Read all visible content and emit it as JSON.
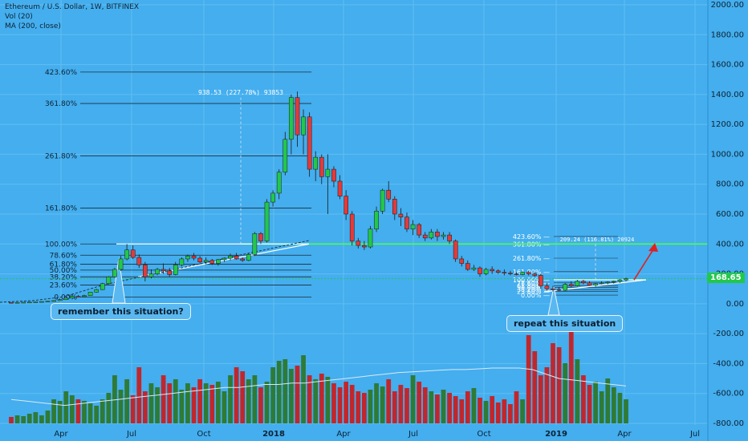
{
  "header": {
    "symbol": "Ethereum / U.S. Dollar, 1W, BITFINEX",
    "indicator1": "Vol (20)",
    "indicator2": "MA (200, close)"
  },
  "annotations": {
    "left_note": "remember this situation?",
    "right_note": "repeat this situation",
    "last_price": "168.65",
    "top_measure": "938.53 (227.78%) 93853",
    "right_measure": "209.24 (116.81%) 20924"
  },
  "colors": {
    "background": "#44aeee",
    "bull": "#22c84a",
    "bear": "#e33a3a",
    "vol_bull": "#2f7a35",
    "vol_bear": "#c0272d",
    "support_line": "#4dff4d",
    "arrow": "#e02020"
  },
  "chart_data": {
    "type": "candlestick",
    "y_axis": {
      "ticks": [
        "2000.00",
        "1800.00",
        "1600.00",
        "1400.00",
        "1200.00",
        "1000.00",
        "800.00",
        "600.00",
        "400.00",
        "200.00",
        "0.00",
        "-200.00",
        "-400.00",
        "-600.00",
        "-800.00"
      ],
      "ylim": [
        -800,
        2000
      ]
    },
    "x_axis": {
      "ticks": [
        "Apr",
        "Jul",
        "Oct",
        "2018",
        "Apr",
        "Jul",
        "Oct",
        "2019",
        "Apr",
        "Jul"
      ]
    },
    "fib_left": [
      {
        "label": "423.60%",
        "value": 1550
      },
      {
        "label": "361.80%",
        "value": 1340
      },
      {
        "label": "261.80%",
        "value": 990
      },
      {
        "label": "161.80%",
        "value": 640
      },
      {
        "label": "100.00%",
        "value": 400
      },
      {
        "label": "78.60%",
        "value": 325
      },
      {
        "label": "61.80%",
        "value": 265
      },
      {
        "label": "50.00%",
        "value": 225
      },
      {
        "label": "38.20%",
        "value": 180
      },
      {
        "label": "23.60%",
        "value": 125
      },
      {
        "label": "0.00%",
        "value": 45
      }
    ],
    "fib_right": [
      {
        "label": "423.60%",
        "value": 450
      },
      {
        "label": "361.80%",
        "value": 400
      },
      {
        "label": "261.80%",
        "value": 305
      },
      {
        "label": "161.80%",
        "value": 215
      },
      {
        "label": "100.00%",
        "value": 160
      },
      {
        "label": "78.60%",
        "value": 140
      },
      {
        "label": "61.80%",
        "value": 120
      },
      {
        "label": "50.00%",
        "value": 110
      },
      {
        "label": "38.20%",
        "value": 95
      },
      {
        "label": "23.60%",
        "value": 82
      },
      {
        "label": "0.00%",
        "value": 58
      }
    ],
    "support_level": 400,
    "last_price": 168.65,
    "candles": [
      [
        9,
        10,
        7,
        8
      ],
      [
        8,
        10,
        7,
        9
      ],
      [
        9,
        11,
        8,
        10
      ],
      [
        10,
        12,
        9,
        11
      ],
      [
        11,
        14,
        10,
        13
      ],
      [
        13,
        16,
        12,
        15
      ],
      [
        15,
        19,
        14,
        18
      ],
      [
        18,
        23,
        17,
        21
      ],
      [
        21,
        30,
        20,
        28
      ],
      [
        28,
        40,
        27,
        38
      ],
      [
        38,
        52,
        36,
        50
      ],
      [
        50,
        58,
        44,
        48
      ],
      [
        48,
        60,
        45,
        55
      ],
      [
        55,
        80,
        54,
        78
      ],
      [
        78,
        100,
        75,
        95
      ],
      [
        95,
        140,
        92,
        135
      ],
      [
        135,
        185,
        130,
        180
      ],
      [
        180,
        240,
        175,
        230
      ],
      [
        230,
        320,
        220,
        300
      ],
      [
        300,
        400,
        290,
        360
      ],
      [
        360,
        390,
        300,
        310
      ],
      [
        310,
        330,
        240,
        260
      ],
      [
        260,
        280,
        150,
        180
      ],
      [
        180,
        230,
        170,
        200
      ],
      [
        200,
        240,
        190,
        230
      ],
      [
        230,
        270,
        200,
        220
      ],
      [
        220,
        240,
        180,
        195
      ],
      [
        195,
        280,
        190,
        260
      ],
      [
        260,
        310,
        250,
        300
      ],
      [
        300,
        330,
        280,
        320
      ],
      [
        320,
        340,
        290,
        305
      ],
      [
        305,
        320,
        270,
        280
      ],
      [
        280,
        310,
        265,
        290
      ],
      [
        290,
        300,
        260,
        270
      ],
      [
        270,
        300,
        255,
        295
      ],
      [
        295,
        310,
        280,
        305
      ],
      [
        305,
        335,
        290,
        320
      ],
      [
        320,
        340,
        295,
        300
      ],
      [
        300,
        310,
        280,
        290
      ],
      [
        290,
        340,
        285,
        330
      ],
      [
        330,
        480,
        320,
        470
      ],
      [
        470,
        480,
        400,
        420
      ],
      [
        420,
        700,
        410,
        680
      ],
      [
        680,
        760,
        650,
        740
      ],
      [
        740,
        900,
        700,
        880
      ],
      [
        880,
        1150,
        860,
        1100
      ],
      [
        1100,
        1400,
        1000,
        1380
      ],
      [
        1380,
        1420,
        1050,
        1130
      ],
      [
        1130,
        1300,
        1000,
        1250
      ],
      [
        1250,
        1280,
        850,
        900
      ],
      [
        900,
        1020,
        820,
        980
      ],
      [
        980,
        1000,
        800,
        850
      ],
      [
        850,
        1000,
        600,
        900
      ],
      [
        900,
        920,
        780,
        820
      ],
      [
        820,
        860,
        700,
        720
      ],
      [
        720,
        760,
        560,
        600
      ],
      [
        600,
        620,
        390,
        420
      ],
      [
        420,
        440,
        370,
        390
      ],
      [
        390,
        420,
        360,
        380
      ],
      [
        380,
        520,
        370,
        500
      ],
      [
        500,
        650,
        480,
        620
      ],
      [
        620,
        770,
        600,
        760
      ],
      [
        760,
        820,
        680,
        700
      ],
      [
        700,
        720,
        560,
        600
      ],
      [
        600,
        640,
        520,
        580
      ],
      [
        580,
        610,
        480,
        500
      ],
      [
        500,
        560,
        460,
        530
      ],
      [
        530,
        540,
        440,
        460
      ],
      [
        460,
        480,
        420,
        440
      ],
      [
        440,
        500,
        430,
        480
      ],
      [
        480,
        500,
        420,
        450
      ],
      [
        450,
        480,
        430,
        460
      ],
      [
        460,
        480,
        400,
        420
      ],
      [
        420,
        430,
        280,
        300
      ],
      [
        300,
        320,
        250,
        270
      ],
      [
        270,
        290,
        220,
        230
      ],
      [
        230,
        260,
        220,
        240
      ],
      [
        240,
        250,
        180,
        200
      ],
      [
        200,
        240,
        190,
        230
      ],
      [
        230,
        250,
        200,
        220
      ],
      [
        220,
        230,
        200,
        210
      ],
      [
        210,
        230,
        190,
        205
      ],
      [
        205,
        220,
        190,
        200
      ],
      [
        200,
        210,
        190,
        195
      ],
      [
        195,
        215,
        190,
        210
      ],
      [
        210,
        220,
        190,
        200
      ],
      [
        200,
        210,
        180,
        190
      ],
      [
        190,
        200,
        100,
        120
      ],
      [
        120,
        140,
        90,
        100
      ],
      [
        100,
        120,
        82,
        95
      ],
      [
        95,
        110,
        85,
        90
      ],
      [
        90,
        140,
        85,
        130
      ],
      [
        130,
        150,
        110,
        120
      ],
      [
        120,
        160,
        115,
        150
      ],
      [
        150,
        160,
        130,
        140
      ],
      [
        140,
        150,
        120,
        125
      ],
      [
        125,
        140,
        115,
        135
      ],
      [
        135,
        150,
        130,
        140
      ],
      [
        140,
        150,
        130,
        145
      ],
      [
        145,
        155,
        135,
        150
      ],
      [
        150,
        165,
        140,
        160
      ],
      [
        160,
        175,
        150,
        168
      ]
    ],
    "volume_avg": [
      -640,
      -650,
      -660,
      -670,
      -680,
      -670,
      -660,
      -650,
      -640,
      -630,
      -620,
      -610,
      -600,
      -590,
      -580,
      -570,
      -560,
      -560,
      -550,
      -540,
      -540,
      -530,
      -530,
      -520,
      -510,
      -500,
      -490,
      -480,
      -470,
      -460,
      -455,
      -450,
      -445,
      -440,
      -440,
      -435,
      -430,
      -430,
      -430,
      -440,
      -470,
      -500,
      -510,
      -520,
      -530,
      -540,
      -550
    ]
  }
}
